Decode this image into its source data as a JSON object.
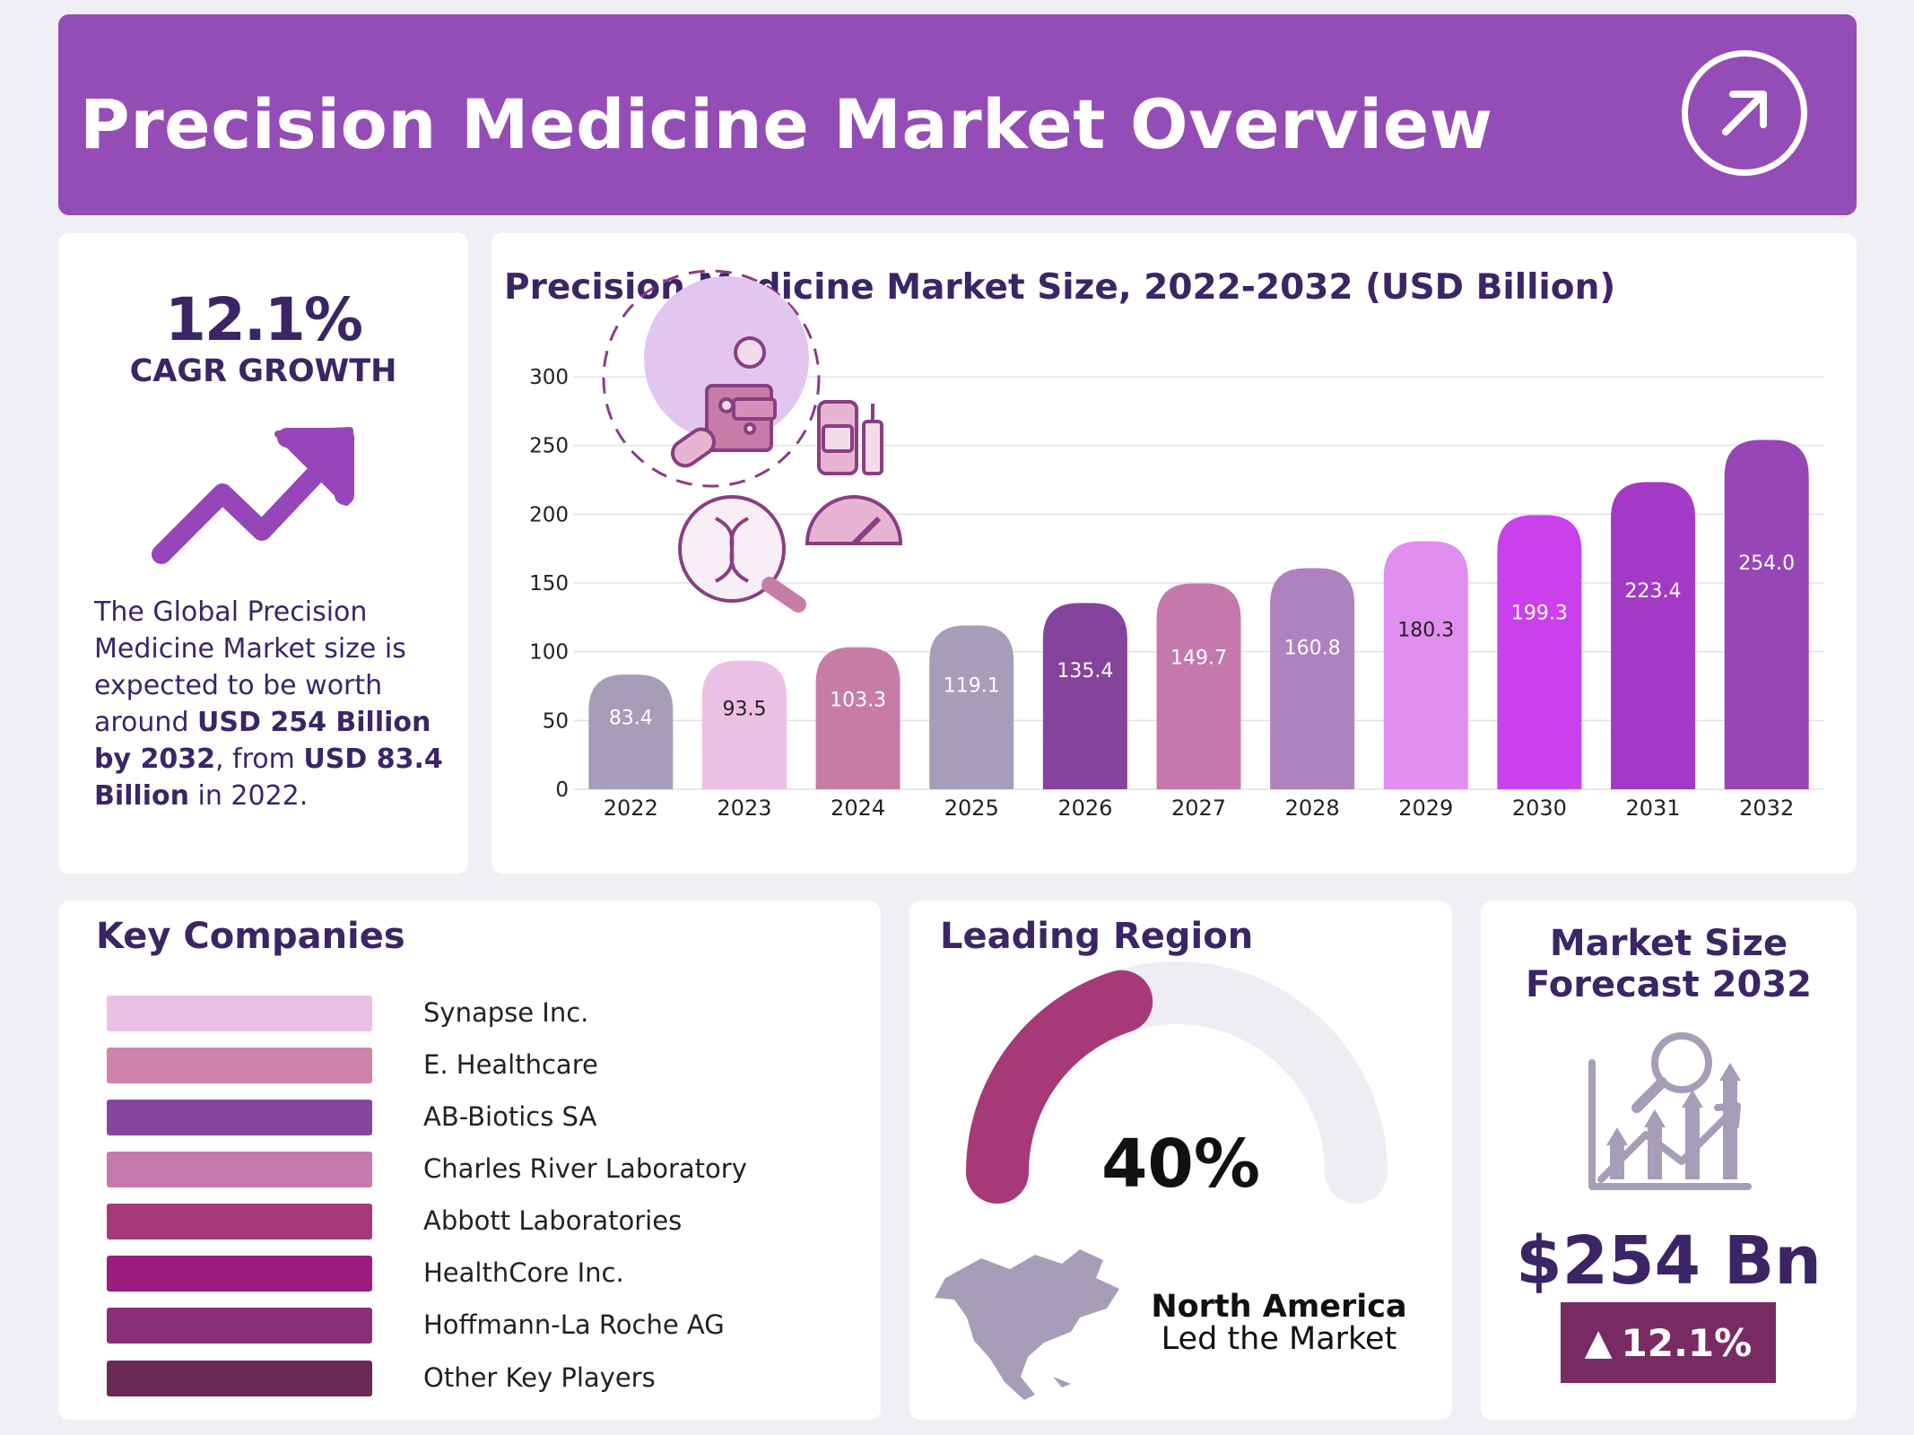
{
  "header": {
    "title": "Precision Medicine Market Overview",
    "icon": "arrow-up-right-icon"
  },
  "cagr": {
    "value": "12.1%",
    "label": "CAGR GROWTH",
    "icon": "trend-up-icon",
    "desc_1": "The Global Precision Medicine Market size is expected to be worth around ",
    "desc_bold_1": "USD  254 Billion by 2032",
    "desc_2": ", from ",
    "desc_bold_2": "USD 83.4 Billion",
    "desc_3": " in 2022."
  },
  "chart_data": {
    "type": "bar",
    "title": "Precision Medicine Market Size, 2022-2032 (USD Billion)",
    "xlabel": "",
    "ylabel": "",
    "categories": [
      "2022",
      "2023",
      "2024",
      "2025",
      "2026",
      "2027",
      "2028",
      "2029",
      "2030",
      "2031",
      "2032"
    ],
    "values": [
      83.4,
      93.5,
      103.3,
      119.1,
      135.4,
      149.7,
      160.8,
      180.3,
      199.3,
      223.4,
      254.0
    ],
    "value_labels": [
      "83.4",
      "93.5",
      "103.3",
      "119.1",
      "135.4",
      "149.7",
      "160.8",
      "180.3",
      "199.3",
      "223.4",
      "254.0"
    ],
    "bar_colors": [
      "#a89db8",
      "#ecc0e4",
      "#c77ca8",
      "#a89db8",
      "#84449b",
      "#c578ac",
      "#ae82be",
      "#e08ef0",
      "#cb40eb",
      "#a33ac6",
      "#9746b6"
    ],
    "label_colors": [
      "#ffffff",
      "#222222",
      "#ffffff",
      "#ffffff",
      "#ffffff",
      "#ffffff",
      "#ffffff",
      "#222222",
      "#ffffff",
      "#ffffff",
      "#ffffff"
    ],
    "yticks": [
      "0",
      "50",
      "100",
      "150",
      "200",
      "250",
      "300"
    ],
    "ylim": [
      0,
      300
    ],
    "grid": true
  },
  "companies": {
    "title": "Key Companies",
    "items": [
      {
        "name": "Synapse Inc.",
        "color": "#ecc0e4"
      },
      {
        "name": "E. Healthcare",
        "color": "#cc84ad"
      },
      {
        "name": "AB-Biotics SA",
        "color": "#87469d"
      },
      {
        "name": "Charles River Laboratory",
        "color": "#c679ac"
      },
      {
        "name": "Abbott Laboratories",
        "color": "#a63a78"
      },
      {
        "name": "HealthCore Inc.",
        "color": "#9b1d7f"
      },
      {
        "name": "Hoffmann-La Roche AG",
        "color": "#8b2e7a"
      },
      {
        "name": "Other Key Players",
        "color": "#6a2a55"
      }
    ]
  },
  "region": {
    "title": "Leading Region",
    "percent": "40%",
    "share": 0.4,
    "name": "North America",
    "subtitle": "Led the Market",
    "gauge_color": "#a63a78",
    "icon": "north-america-map-icon"
  },
  "forecast": {
    "title_line1": "Market Size",
    "title_line2": "Forecast 2032",
    "value": "$254 Bn",
    "badge_arrow": "▲",
    "badge_text": "12.1%",
    "icon": "growth-chart-icon"
  }
}
